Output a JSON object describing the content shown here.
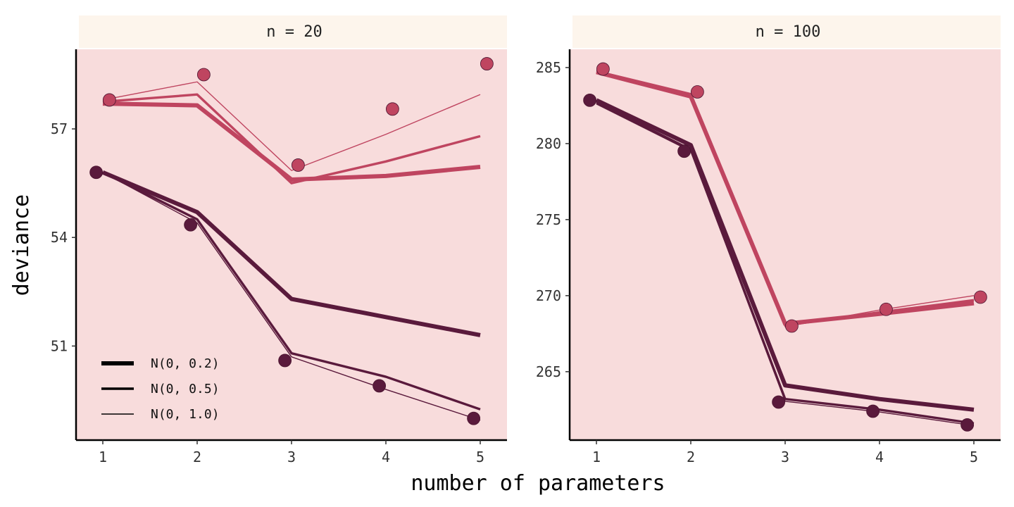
{
  "chart_data": {
    "type": "line",
    "xlabel": "number of parameters",
    "ylabel": "deviance",
    "x": [
      1,
      2,
      3,
      4,
      5
    ],
    "legend": {
      "placement": "bottom-left of left panel",
      "entries": [
        {
          "label": "N(0, 0.2)",
          "line_weight": "thick"
        },
        {
          "label": "N(0, 0.5)",
          "line_weight": "medium"
        },
        {
          "label": "N(0, 1.0)",
          "line_weight": "thin"
        }
      ]
    },
    "colors": {
      "panel_background": "#f8dcdc",
      "strip_background": "#fdf5ec",
      "in_sample": "#5a1a3c",
      "out_of_sample": "#bf4560"
    },
    "panels": [
      {
        "strip": "n = 20",
        "ylim": [
          48.4,
          59.2
        ],
        "y_ticks": [
          51,
          54,
          57
        ],
        "x_ticks": [
          1,
          2,
          3,
          4,
          5
        ],
        "points": {
          "in_sample": [
            55.8,
            54.35,
            50.6,
            49.9,
            49.0
          ],
          "out_of_sample": [
            57.8,
            58.5,
            56.0,
            57.55,
            58.8
          ]
        },
        "lines": [
          {
            "group": "in_sample",
            "prior": "N(0, 0.2)",
            "values": [
              55.8,
              54.7,
              52.3,
              51.8,
              51.3
            ]
          },
          {
            "group": "in_sample",
            "prior": "N(0, 0.5)",
            "values": [
              55.8,
              54.5,
              50.8,
              50.15,
              49.25
            ]
          },
          {
            "group": "in_sample",
            "prior": "N(0, 1.0)",
            "values": [
              55.8,
              54.4,
              50.7,
              49.8,
              48.95
            ]
          },
          {
            "group": "out_of_sample",
            "prior": "N(0, 0.2)",
            "values": [
              57.7,
              57.65,
              55.6,
              55.7,
              55.95
            ]
          },
          {
            "group": "out_of_sample",
            "prior": "N(0, 0.5)",
            "values": [
              57.75,
              57.95,
              55.5,
              56.1,
              56.8
            ]
          },
          {
            "group": "out_of_sample",
            "prior": "N(0, 1.0)",
            "values": [
              57.8,
              58.3,
              55.85,
              56.85,
              57.95
            ]
          }
        ]
      },
      {
        "strip": "n = 100",
        "ylim": [
          260.5,
          286.2
        ],
        "y_ticks": [
          265,
          270,
          275,
          280,
          285
        ],
        "x_ticks": [
          1,
          2,
          3,
          4,
          5
        ],
        "points": {
          "in_sample": [
            282.85,
            279.5,
            263.0,
            262.4,
            261.5
          ],
          "out_of_sample": [
            284.9,
            283.4,
            268.0,
            269.1,
            269.9
          ]
        },
        "lines": [
          {
            "group": "in_sample",
            "prior": "N(0, 0.2)",
            "values": [
              282.85,
              279.9,
              264.1,
              263.2,
              262.5
            ]
          },
          {
            "group": "in_sample",
            "prior": "N(0, 0.5)",
            "values": [
              282.7,
              279.6,
              263.2,
              262.5,
              261.6
            ]
          },
          {
            "group": "in_sample",
            "prior": "N(0, 1.0)",
            "values": [
              282.6,
              279.5,
              263.05,
              262.35,
              261.45
            ]
          },
          {
            "group": "out_of_sample",
            "prior": "N(0, 0.2)",
            "values": [
              284.7,
              283.1,
              268.15,
              268.8,
              269.5
            ]
          },
          {
            "group": "out_of_sample",
            "prior": "N(0, 0.5)",
            "values": [
              284.75,
              283.2,
              268.05,
              268.9,
              269.7
            ]
          },
          {
            "group": "out_of_sample",
            "prior": "N(0, 1.0)",
            "values": [
              284.8,
              283.3,
              267.95,
              269.05,
              270.0
            ]
          }
        ]
      }
    ]
  }
}
